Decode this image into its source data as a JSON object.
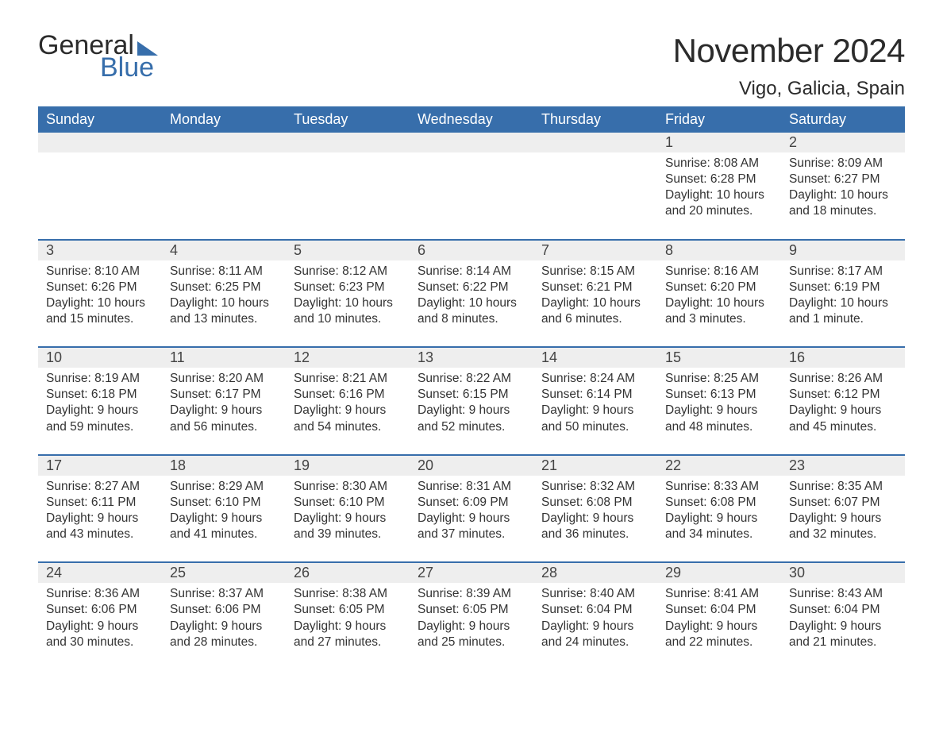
{
  "brand": {
    "line1": "General",
    "line2": "Blue",
    "text_color": "#2b2b2b",
    "accent_color": "#376eab"
  },
  "header": {
    "title": "November 2024",
    "location": "Vigo, Galicia, Spain",
    "title_fontsize": 42,
    "location_fontsize": 24
  },
  "colors": {
    "header_bg": "#376eab",
    "header_text": "#ffffff",
    "daynum_bg": "#eeeeee",
    "text": "#333333",
    "week_divider": "#376eab",
    "background": "#ffffff"
  },
  "calendar": {
    "type": "table",
    "columns": [
      "Sunday",
      "Monday",
      "Tuesday",
      "Wednesday",
      "Thursday",
      "Friday",
      "Saturday"
    ],
    "weeks": [
      [
        {
          "day": "",
          "sunrise": "",
          "sunset": "",
          "daylight": ""
        },
        {
          "day": "",
          "sunrise": "",
          "sunset": "",
          "daylight": ""
        },
        {
          "day": "",
          "sunrise": "",
          "sunset": "",
          "daylight": ""
        },
        {
          "day": "",
          "sunrise": "",
          "sunset": "",
          "daylight": ""
        },
        {
          "day": "",
          "sunrise": "",
          "sunset": "",
          "daylight": ""
        },
        {
          "day": "1",
          "sunrise": "Sunrise: 8:08 AM",
          "sunset": "Sunset: 6:28 PM",
          "daylight": "Daylight: 10 hours and 20 minutes."
        },
        {
          "day": "2",
          "sunrise": "Sunrise: 8:09 AM",
          "sunset": "Sunset: 6:27 PM",
          "daylight": "Daylight: 10 hours and 18 minutes."
        }
      ],
      [
        {
          "day": "3",
          "sunrise": "Sunrise: 8:10 AM",
          "sunset": "Sunset: 6:26 PM",
          "daylight": "Daylight: 10 hours and 15 minutes."
        },
        {
          "day": "4",
          "sunrise": "Sunrise: 8:11 AM",
          "sunset": "Sunset: 6:25 PM",
          "daylight": "Daylight: 10 hours and 13 minutes."
        },
        {
          "day": "5",
          "sunrise": "Sunrise: 8:12 AM",
          "sunset": "Sunset: 6:23 PM",
          "daylight": "Daylight: 10 hours and 10 minutes."
        },
        {
          "day": "6",
          "sunrise": "Sunrise: 8:14 AM",
          "sunset": "Sunset: 6:22 PM",
          "daylight": "Daylight: 10 hours and 8 minutes."
        },
        {
          "day": "7",
          "sunrise": "Sunrise: 8:15 AM",
          "sunset": "Sunset: 6:21 PM",
          "daylight": "Daylight: 10 hours and 6 minutes."
        },
        {
          "day": "8",
          "sunrise": "Sunrise: 8:16 AM",
          "sunset": "Sunset: 6:20 PM",
          "daylight": "Daylight: 10 hours and 3 minutes."
        },
        {
          "day": "9",
          "sunrise": "Sunrise: 8:17 AM",
          "sunset": "Sunset: 6:19 PM",
          "daylight": "Daylight: 10 hours and 1 minute."
        }
      ],
      [
        {
          "day": "10",
          "sunrise": "Sunrise: 8:19 AM",
          "sunset": "Sunset: 6:18 PM",
          "daylight": "Daylight: 9 hours and 59 minutes."
        },
        {
          "day": "11",
          "sunrise": "Sunrise: 8:20 AM",
          "sunset": "Sunset: 6:17 PM",
          "daylight": "Daylight: 9 hours and 56 minutes."
        },
        {
          "day": "12",
          "sunrise": "Sunrise: 8:21 AM",
          "sunset": "Sunset: 6:16 PM",
          "daylight": "Daylight: 9 hours and 54 minutes."
        },
        {
          "day": "13",
          "sunrise": "Sunrise: 8:22 AM",
          "sunset": "Sunset: 6:15 PM",
          "daylight": "Daylight: 9 hours and 52 minutes."
        },
        {
          "day": "14",
          "sunrise": "Sunrise: 8:24 AM",
          "sunset": "Sunset: 6:14 PM",
          "daylight": "Daylight: 9 hours and 50 minutes."
        },
        {
          "day": "15",
          "sunrise": "Sunrise: 8:25 AM",
          "sunset": "Sunset: 6:13 PM",
          "daylight": "Daylight: 9 hours and 48 minutes."
        },
        {
          "day": "16",
          "sunrise": "Sunrise: 8:26 AM",
          "sunset": "Sunset: 6:12 PM",
          "daylight": "Daylight: 9 hours and 45 minutes."
        }
      ],
      [
        {
          "day": "17",
          "sunrise": "Sunrise: 8:27 AM",
          "sunset": "Sunset: 6:11 PM",
          "daylight": "Daylight: 9 hours and 43 minutes."
        },
        {
          "day": "18",
          "sunrise": "Sunrise: 8:29 AM",
          "sunset": "Sunset: 6:10 PM",
          "daylight": "Daylight: 9 hours and 41 minutes."
        },
        {
          "day": "19",
          "sunrise": "Sunrise: 8:30 AM",
          "sunset": "Sunset: 6:10 PM",
          "daylight": "Daylight: 9 hours and 39 minutes."
        },
        {
          "day": "20",
          "sunrise": "Sunrise: 8:31 AM",
          "sunset": "Sunset: 6:09 PM",
          "daylight": "Daylight: 9 hours and 37 minutes."
        },
        {
          "day": "21",
          "sunrise": "Sunrise: 8:32 AM",
          "sunset": "Sunset: 6:08 PM",
          "daylight": "Daylight: 9 hours and 36 minutes."
        },
        {
          "day": "22",
          "sunrise": "Sunrise: 8:33 AM",
          "sunset": "Sunset: 6:08 PM",
          "daylight": "Daylight: 9 hours and 34 minutes."
        },
        {
          "day": "23",
          "sunrise": "Sunrise: 8:35 AM",
          "sunset": "Sunset: 6:07 PM",
          "daylight": "Daylight: 9 hours and 32 minutes."
        }
      ],
      [
        {
          "day": "24",
          "sunrise": "Sunrise: 8:36 AM",
          "sunset": "Sunset: 6:06 PM",
          "daylight": "Daylight: 9 hours and 30 minutes."
        },
        {
          "day": "25",
          "sunrise": "Sunrise: 8:37 AM",
          "sunset": "Sunset: 6:06 PM",
          "daylight": "Daylight: 9 hours and 28 minutes."
        },
        {
          "day": "26",
          "sunrise": "Sunrise: 8:38 AM",
          "sunset": "Sunset: 6:05 PM",
          "daylight": "Daylight: 9 hours and 27 minutes."
        },
        {
          "day": "27",
          "sunrise": "Sunrise: 8:39 AM",
          "sunset": "Sunset: 6:05 PM",
          "daylight": "Daylight: 9 hours and 25 minutes."
        },
        {
          "day": "28",
          "sunrise": "Sunrise: 8:40 AM",
          "sunset": "Sunset: 6:04 PM",
          "daylight": "Daylight: 9 hours and 24 minutes."
        },
        {
          "day": "29",
          "sunrise": "Sunrise: 8:41 AM",
          "sunset": "Sunset: 6:04 PM",
          "daylight": "Daylight: 9 hours and 22 minutes."
        },
        {
          "day": "30",
          "sunrise": "Sunrise: 8:43 AM",
          "sunset": "Sunset: 6:04 PM",
          "daylight": "Daylight: 9 hours and 21 minutes."
        }
      ]
    ]
  }
}
